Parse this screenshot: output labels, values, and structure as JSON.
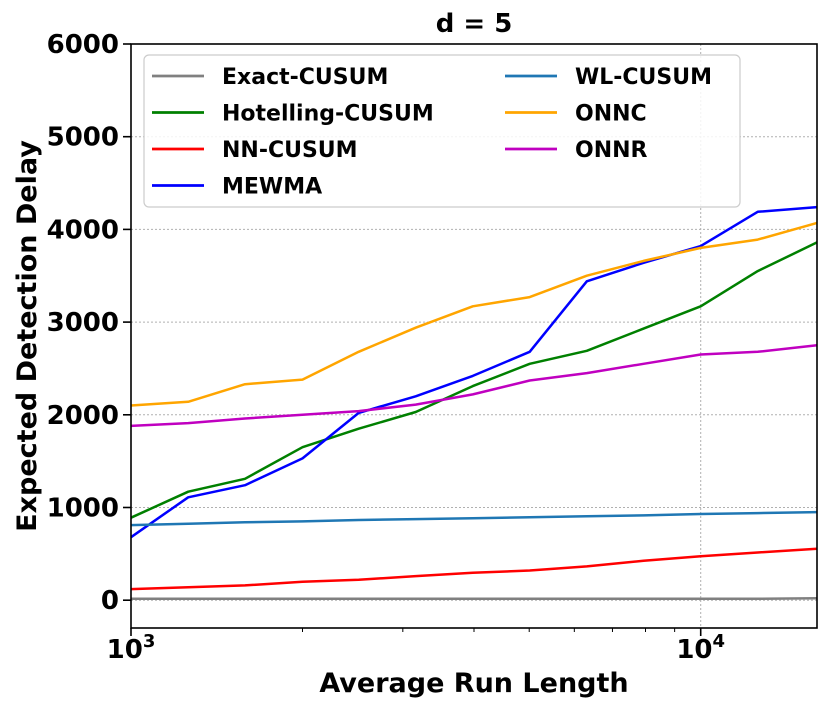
{
  "chart_data": {
    "type": "line",
    "title": "d = 5",
    "xlabel": "Average Run Length",
    "ylabel": "Expected Detection Delay",
    "xscale": "log",
    "xlim": [
      1000,
      16000
    ],
    "ylim": [
      -300,
      6000
    ],
    "yticks": [
      0,
      1000,
      2000,
      3000,
      4000,
      5000,
      6000
    ],
    "ytick_labels": [
      "0",
      "1000",
      "2000",
      "3000",
      "4000",
      "5000",
      "6000"
    ],
    "xticks": [
      1000,
      10000
    ],
    "xtick_labels": [
      {
        "base": "10",
        "exp": "3"
      },
      {
        "base": "10",
        "exp": "4"
      }
    ],
    "grid": true,
    "legend_position": "top-left",
    "x": [
      1000,
      1260,
      1585,
      2000,
      2510,
      3160,
      3980,
      5010,
      6310,
      7940,
      10000,
      12590,
      16000
    ],
    "series": [
      {
        "name": "Exact-CUSUM",
        "color": "#808080",
        "values": [
          15,
          15,
          15,
          15,
          15,
          15,
          15,
          15,
          15,
          15,
          15,
          15,
          20
        ]
      },
      {
        "name": "Hotelling-CUSUM",
        "color": "#008000",
        "values": [
          890,
          1170,
          1310,
          1650,
          1850,
          2030,
          2310,
          2550,
          2690,
          2930,
          3170,
          3550,
          3860
        ]
      },
      {
        "name": "NN-CUSUM",
        "color": "#ff0000",
        "values": [
          120,
          140,
          160,
          200,
          220,
          260,
          295,
          320,
          365,
          425,
          475,
          515,
          555
        ]
      },
      {
        "name": "MEWMA",
        "color": "#0000ff",
        "values": [
          680,
          1110,
          1240,
          1530,
          2020,
          2200,
          2420,
          2680,
          3440,
          3640,
          3820,
          4190,
          4240
        ]
      },
      {
        "name": "WL-CUSUM",
        "color": "#1f77b4",
        "values": [
          810,
          825,
          840,
          850,
          865,
          875,
          885,
          895,
          905,
          915,
          930,
          940,
          950
        ]
      },
      {
        "name": "ONNC",
        "color": "#ffa500",
        "values": [
          2100,
          2140,
          2330,
          2380,
          2680,
          2940,
          3170,
          3270,
          3500,
          3660,
          3800,
          3890,
          4070
        ]
      },
      {
        "name": "ONNR",
        "color": "#c000c0",
        "values": [
          1880,
          1910,
          1960,
          2000,
          2040,
          2110,
          2220,
          2370,
          2450,
          2550,
          2650,
          2680,
          2750
        ]
      }
    ]
  }
}
